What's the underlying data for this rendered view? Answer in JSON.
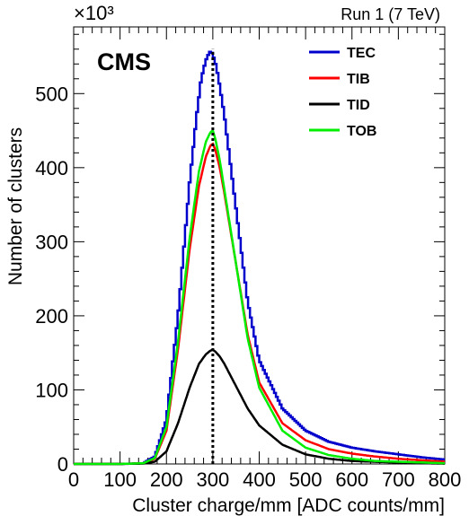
{
  "chart_data": {
    "type": "line",
    "title": "",
    "experiment_label": "CMS",
    "run_label": "Run 1 (7 TeV)",
    "y_exponent_label": "×10³",
    "xlabel": "Cluster charge/mm [ADC counts/mm]",
    "ylabel": "Number of clusters",
    "xlim": [
      0,
      800
    ],
    "ylim": [
      0,
      590
    ],
    "y_scale_note": "values in thousands",
    "x_ticks": [
      0,
      100,
      200,
      300,
      400,
      500,
      600,
      700,
      800
    ],
    "y_ticks": [
      0,
      100,
      200,
      300,
      400,
      500
    ],
    "reference_line_x": 300,
    "legend_position": "top-right",
    "grid": false,
    "series": [
      {
        "name": "TEC",
        "color": "#0000cc",
        "style": "histogram",
        "x": [
          0,
          100,
          150,
          175,
          200,
          225,
          250,
          265,
          275,
          285,
          292,
          296,
          300,
          304,
          308,
          315,
          325,
          350,
          375,
          400,
          450,
          500,
          550,
          600,
          650,
          700,
          750,
          800
        ],
        "values": [
          0,
          0,
          1,
          10,
          60,
          200,
          380,
          470,
          520,
          545,
          555,
          558,
          552,
          545,
          535,
          510,
          470,
          345,
          220,
          140,
          75,
          45,
          30,
          22,
          17,
          13,
          9,
          6
        ]
      },
      {
        "name": "TIB",
        "color": "#ff0000",
        "style": "line",
        "x": [
          0,
          100,
          150,
          175,
          200,
          225,
          250,
          270,
          285,
          295,
          300,
          305,
          315,
          325,
          350,
          375,
          400,
          450,
          500,
          550,
          600,
          650,
          700,
          750,
          800
        ],
        "values": [
          0,
          0,
          1,
          7,
          45,
          155,
          290,
          375,
          415,
          430,
          432,
          425,
          400,
          365,
          270,
          175,
          110,
          55,
          32,
          20,
          14,
          10,
          7,
          5,
          3
        ]
      },
      {
        "name": "TID",
        "color": "#000000",
        "style": "line",
        "x": [
          0,
          100,
          150,
          175,
          200,
          225,
          250,
          270,
          285,
          295,
          300,
          305,
          315,
          325,
          350,
          375,
          400,
          450,
          500,
          550,
          600,
          650,
          700,
          750,
          800
        ],
        "values": [
          0,
          0,
          0.5,
          3,
          17,
          55,
          103,
          135,
          148,
          153,
          154,
          152,
          145,
          135,
          105,
          75,
          52,
          26,
          13,
          7,
          4,
          3,
          2,
          1,
          0.5
        ]
      },
      {
        "name": "TOB",
        "color": "#00ee00",
        "style": "line",
        "x": [
          0,
          100,
          150,
          175,
          200,
          225,
          250,
          270,
          285,
          295,
          300,
          305,
          315,
          325,
          350,
          375,
          400,
          450,
          500,
          550,
          600,
          650,
          700,
          750,
          800
        ],
        "values": [
          0,
          0,
          1,
          8,
          50,
          165,
          305,
          395,
          435,
          448,
          450,
          440,
          410,
          370,
          270,
          170,
          103,
          45,
          22,
          12,
          7,
          4,
          3,
          2,
          1
        ]
      }
    ]
  }
}
